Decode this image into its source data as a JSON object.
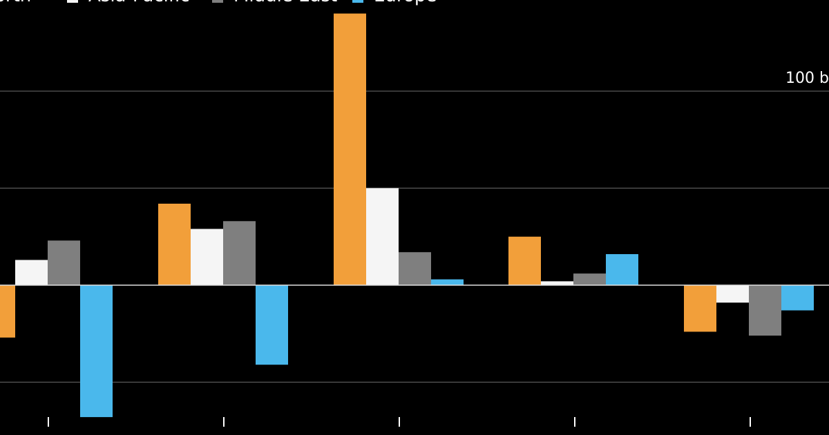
{
  "chart_data": {
    "type": "bar",
    "categories": [
      "",
      "",
      "",
      "",
      ""
    ],
    "series": [
      {
        "name": "North America",
        "color": "#f29f3a",
        "values": [
          -27,
          42,
          140,
          25,
          -24
        ]
      },
      {
        "name": "Asia-Pacific",
        "color": "#f5f5f5",
        "values": [
          13,
          29,
          50,
          2,
          -9
        ]
      },
      {
        "name": "Middle East",
        "color": "#7f7f7f",
        "values": [
          23,
          33,
          17,
          6,
          -26
        ]
      },
      {
        "name": "Europe",
        "color": "#4ab8ec",
        "values": [
          -68,
          -41,
          3,
          16,
          -13
        ]
      }
    ],
    "y_ticks": [
      {
        "value": 100,
        "label": "100 b"
      },
      {
        "value": 50,
        "label": ""
      },
      {
        "value": -50,
        "label": ""
      }
    ],
    "legend_labels": [
      "orth",
      "Asia-Pacific",
      "Middle East",
      "Europe"
    ],
    "ylim": [
      -75,
      145
    ],
    "grid": true,
    "legend_position": "top-left"
  }
}
